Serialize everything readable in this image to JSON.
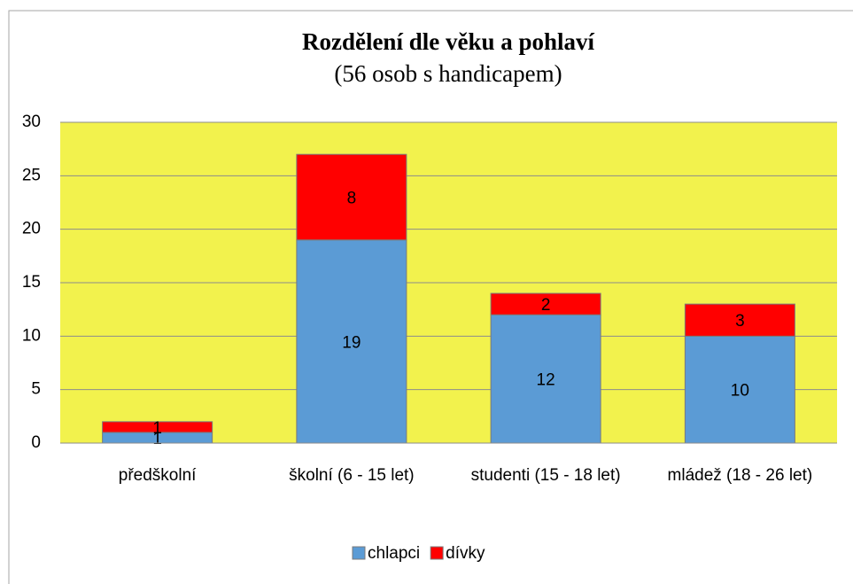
{
  "chart_data": {
    "type": "stacked-bar",
    "title": "Rozdělení dle věku a pohlaví",
    "subtitle": "(56 osob s handicapem)",
    "categories": [
      "předškolní",
      "školní (6 - 15 let)",
      "studenti (15 - 18 let)",
      "mládež (18 - 26 let)"
    ],
    "series": [
      {
        "name": "chlapci",
        "color": "#5b9bd5",
        "values": [
          1,
          19,
          12,
          10
        ]
      },
      {
        "name": "dívky",
        "color": "#ff0000",
        "values": [
          1,
          8,
          2,
          3
        ]
      }
    ],
    "ylim": [
      0,
      30
    ],
    "yticks": [
      0,
      5,
      10,
      15,
      20,
      25,
      30
    ],
    "grid": true,
    "plot_background": "#f2f24d",
    "legend": "bottom"
  }
}
